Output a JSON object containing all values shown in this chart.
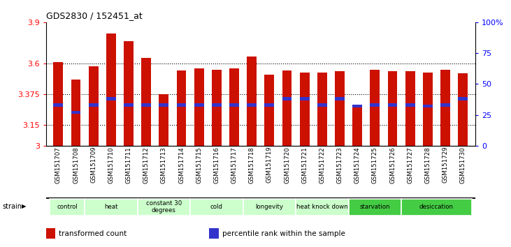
{
  "title": "GDS2830 / 152451_at",
  "samples": [
    "GSM151707",
    "GSM151708",
    "GSM151709",
    "GSM151710",
    "GSM151711",
    "GSM151712",
    "GSM151713",
    "GSM151714",
    "GSM151715",
    "GSM151716",
    "GSM151717",
    "GSM151718",
    "GSM151719",
    "GSM151720",
    "GSM151721",
    "GSM151722",
    "GSM151723",
    "GSM151724",
    "GSM151725",
    "GSM151726",
    "GSM151727",
    "GSM151728",
    "GSM151729",
    "GSM151730"
  ],
  "transformed_count": [
    3.61,
    3.48,
    3.58,
    3.82,
    3.76,
    3.64,
    3.375,
    3.55,
    3.565,
    3.555,
    3.565,
    3.65,
    3.52,
    3.55,
    3.535,
    3.535,
    3.545,
    3.28,
    3.555,
    3.545,
    3.545,
    3.535,
    3.555,
    3.53
  ],
  "percentile_rank": [
    33,
    27,
    33,
    38,
    33,
    33,
    33,
    33,
    33,
    33,
    33,
    33,
    33,
    38,
    38,
    33,
    38,
    32,
    33,
    33,
    33,
    32,
    33,
    38
  ],
  "groups": [
    {
      "label": "control",
      "start": 0,
      "end": 2,
      "color": "#ccffcc"
    },
    {
      "label": "heat",
      "start": 2,
      "end": 5,
      "color": "#ccffcc"
    },
    {
      "label": "constant 30\ndegrees",
      "start": 5,
      "end": 8,
      "color": "#ccffcc"
    },
    {
      "label": "cold",
      "start": 8,
      "end": 11,
      "color": "#ccffcc"
    },
    {
      "label": "longevity",
      "start": 11,
      "end": 14,
      "color": "#ccffcc"
    },
    {
      "label": "heat knock down",
      "start": 14,
      "end": 17,
      "color": "#ccffcc"
    },
    {
      "label": "starvation",
      "start": 17,
      "end": 20,
      "color": "#44cc44"
    },
    {
      "label": "desiccation",
      "start": 20,
      "end": 24,
      "color": "#44cc44"
    }
  ],
  "ymin": 3.0,
  "ymax": 3.9,
  "yticks": [
    3.0,
    3.15,
    3.375,
    3.6,
    3.9
  ],
  "ytick_labels": [
    "3",
    "3.15",
    "3.375",
    "3.6",
    "3.9"
  ],
  "right_yticks": [
    0,
    25,
    50,
    75,
    100
  ],
  "bar_color": "#cc1100",
  "percentile_color": "#3333cc",
  "bar_width": 0.55,
  "legend": [
    {
      "label": "transformed count",
      "color": "#cc1100"
    },
    {
      "label": "percentile rank within the sample",
      "color": "#3333cc"
    }
  ]
}
